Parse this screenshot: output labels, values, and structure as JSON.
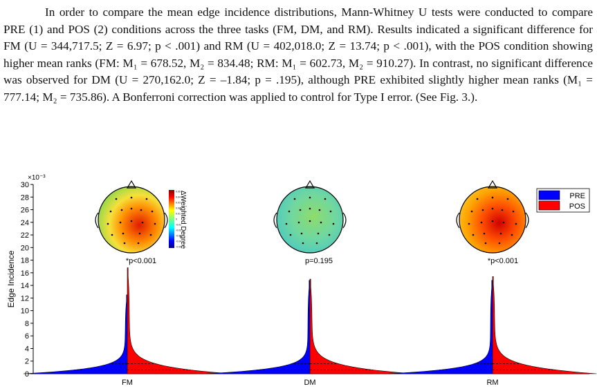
{
  "paragraph": "In order to compare the mean edge incidence distributions, Mann-Whitney U tests were conducted to compare PRE (1) and POS (2) conditions across the three tasks (FM, DM, and RM). Results indicated a significant difference for FM (U = 344,717.5; Z = 6.97; p < .001) and RM (U = 402,018.0; Z = 13.74; p < .001), with the POS condition showing higher mean ranks (FM: M₁ = 678.52, M₂ = 834.48; RM: M₁ = 602.73, M₂ = 910.27). In contrast, no significant difference was observed for DM (U = 270,162.0; Z = –1.84; p = .195), although PRE exhibited slightly higher mean ranks (M₁ = 777.14; M₂ = 735.86). A Bonferroni correction was applied to control for Type I error. (See Fig. 3.).",
  "colors": {
    "pre": "#0000ff",
    "pos": "#ff0000"
  },
  "chart_data": {
    "type": "violin",
    "ylabel": "Edge Incidence",
    "y_scale_label": "×10⁻³",
    "ylim": [
      0,
      30
    ],
    "yticks": [
      0,
      2,
      4,
      6,
      8,
      10,
      12,
      14,
      16,
      18,
      20,
      22,
      24,
      26,
      28,
      30
    ],
    "categories": [
      "FM",
      "DM",
      "RM"
    ],
    "p_labels": [
      "*p<0.001",
      "p=0.195",
      "*p<0.001"
    ],
    "legend": {
      "position": "top-right",
      "entries": [
        "PRE",
        "POS"
      ]
    },
    "series": [
      {
        "name": "PRE",
        "max": [
          12.5,
          14.8,
          14.8
        ]
      },
      {
        "name": "POS",
        "max": [
          16.8,
          15.0,
          15.4
        ]
      }
    ],
    "colorbar": {
      "label": "ΔWeighted Degree",
      "ticks": [
        "0.05",
        "0.04",
        "0.03",
        "0.02",
        "0.01",
        "0",
        "-0.01",
        "-0.02",
        "-0.03",
        "-0.04",
        "-0.05"
      ]
    }
  }
}
